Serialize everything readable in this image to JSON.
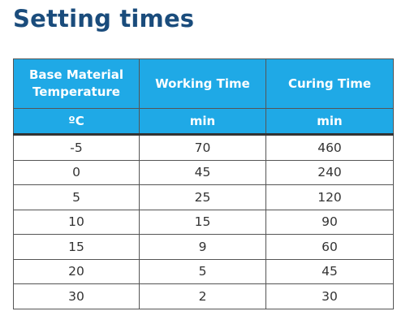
{
  "page": {
    "title": "Setting times"
  },
  "table": {
    "headers": [
      "Base Material Temperature",
      "Working Time",
      "Curing Time"
    ],
    "units": [
      "ºC",
      "min",
      "min"
    ],
    "rows": [
      [
        "-5",
        "70",
        "460"
      ],
      [
        "0",
        "45",
        "240"
      ],
      [
        "5",
        "25",
        "120"
      ],
      [
        "10",
        "15",
        "90"
      ],
      [
        "15",
        "9",
        "60"
      ],
      [
        "20",
        "5",
        "45"
      ],
      [
        "30",
        "2",
        "30"
      ]
    ]
  },
  "colors": {
    "title": "#1a4c7c",
    "header_background": "#1fa9e6",
    "header_text": "#ffffff",
    "border": "#555555",
    "body_text": "#333333"
  }
}
